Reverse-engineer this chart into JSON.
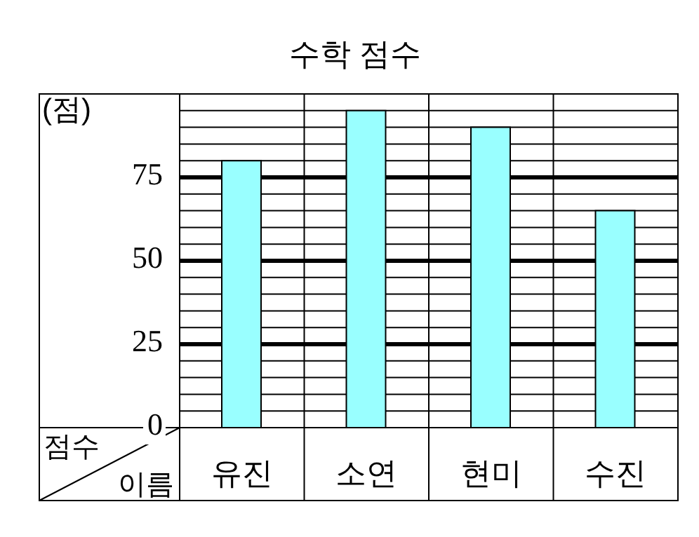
{
  "chart_data": {
    "type": "bar",
    "title": "수학 점수",
    "ylabel": "(점)",
    "xlabel": "이름",
    "annotations": [
      "점수"
    ],
    "categories": [
      "유진",
      "소연",
      "현미",
      "수진"
    ],
    "values": [
      80,
      95,
      90,
      65
    ],
    "color": "#99ffff",
    "ylim": [
      0,
      100
    ],
    "yticks": [
      0,
      {
        "value": 5,
        "label": null
      },
      {
        "value": 10,
        "label": null
      },
      {
        "value": 15,
        "label": null
      },
      {
        "value": 20,
        "label": null
      },
      25,
      {
        "value": 30,
        "label": null
      },
      {
        "value": 35,
        "label": null
      },
      {
        "value": 40,
        "label": null
      },
      {
        "value": 45,
        "label": null
      },
      50,
      {
        "value": 55,
        "label": null
      },
      {
        "value": 60,
        "label": null
      },
      {
        "value": 65,
        "label": null
      },
      {
        "value": 70,
        "label": null
      },
      75,
      {
        "value": 80,
        "label": null
      },
      {
        "value": 85,
        "label": null
      },
      {
        "value": 90,
        "label": null
      },
      {
        "value": 95,
        "label": null
      },
      {
        "value": 100,
        "label": null
      }
    ],
    "grid": true
  }
}
